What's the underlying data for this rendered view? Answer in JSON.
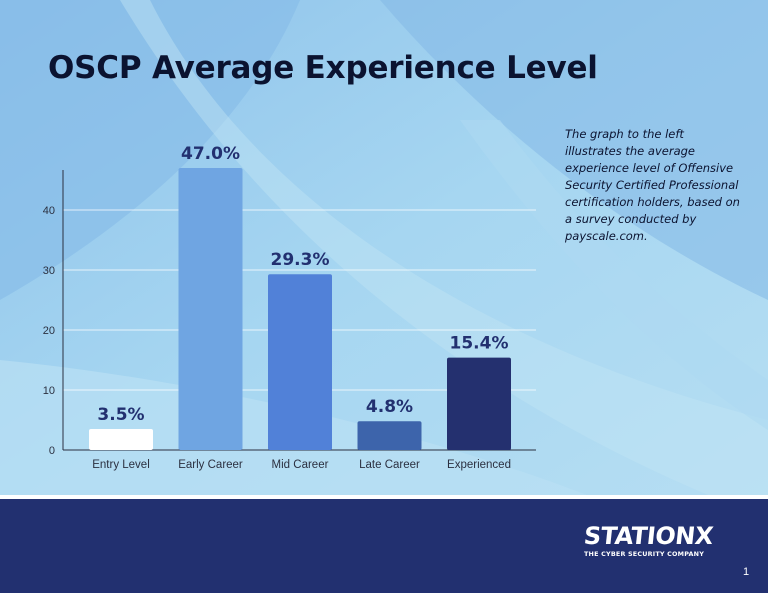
{
  "page": {
    "title": "OSCP Average Experience Level",
    "description": "The graph to the left illustrates the average experience level of Offensive Security Certified Professional certification holders, based on a survey conducted by payscale.com.",
    "logo_text": "STATIONX",
    "logo_tagline": "THE CYBER SECURITY COMPANY",
    "page_number": "1"
  },
  "colors": {
    "background": "#9fd2ef",
    "footer": "#223070",
    "label_text": "#223070",
    "axis": "#2b3040"
  },
  "chart_data": {
    "type": "bar",
    "categories": [
      "Entry Level",
      "Early Career",
      "Mid Career",
      "Late Career",
      "Experienced"
    ],
    "values": [
      3.5,
      47.0,
      29.3,
      4.8,
      15.4
    ],
    "data_labels": [
      "3.5%",
      "47.0%",
      "29.3%",
      "4.8%",
      "15.4%"
    ],
    "bar_colors": [
      "#ffffff",
      "#6fa5e2",
      "#5181d8",
      "#3d64ab",
      "#24306f"
    ],
    "yticks": [
      0,
      10,
      20,
      30,
      40
    ],
    "ylim": [
      0,
      47
    ],
    "grid": true,
    "legend": false
  }
}
